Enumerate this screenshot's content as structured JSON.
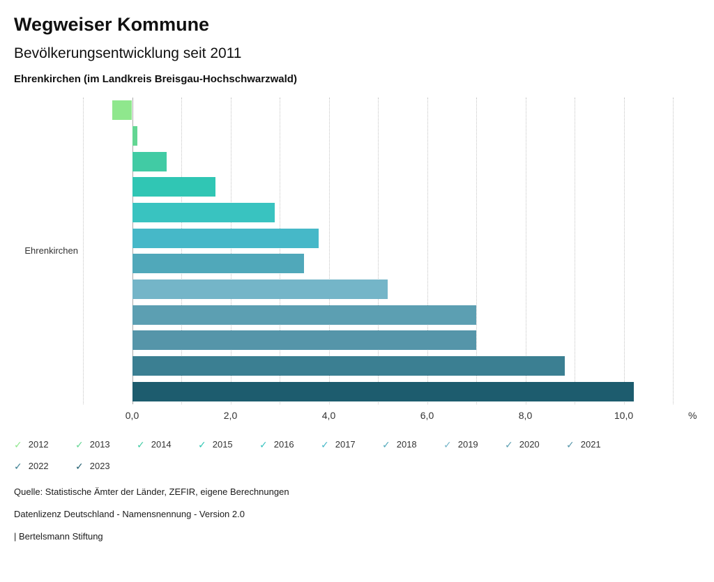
{
  "header": {
    "title": "Wegweiser Kommune",
    "subtitle": "Bevölkerungsentwicklung seit 2011",
    "region_line": "Ehrenkirchen (im Landkreis Breisgau-Hochschwarzwald)"
  },
  "chart_data": {
    "type": "bar",
    "orientation": "horizontal",
    "title": "Bevölkerungsentwicklung seit 2011",
    "category_label": "Ehrenkirchen",
    "unit_label": "%",
    "xlim": [
      -1,
      11
    ],
    "grid": "dotted vertical gridlines every 1.0",
    "legend_position": "bottom",
    "xticks": [
      {
        "value": 0,
        "label": "0,0"
      },
      {
        "value": 2,
        "label": "2,0"
      },
      {
        "value": 4,
        "label": "4,0"
      },
      {
        "value": 6,
        "label": "6,0"
      },
      {
        "value": 8,
        "label": "8,0"
      },
      {
        "value": 10,
        "label": "10,0"
      }
    ],
    "series": [
      {
        "year": "2012",
        "value": -0.4,
        "color": "#8fe78d"
      },
      {
        "year": "2013",
        "value": 0.1,
        "color": "#63d693"
      },
      {
        "year": "2014",
        "value": 0.7,
        "color": "#41cba4"
      },
      {
        "year": "2015",
        "value": 1.7,
        "color": "#30c6b4"
      },
      {
        "year": "2016",
        "value": 2.9,
        "color": "#39c3c0"
      },
      {
        "year": "2017",
        "value": 3.8,
        "color": "#46b8c8"
      },
      {
        "year": "2018",
        "value": 3.5,
        "color": "#50a8ba"
      },
      {
        "year": "2019",
        "value": 5.2,
        "color": "#74b5c8"
      },
      {
        "year": "2020",
        "value": 7.0,
        "color": "#5c9fb2"
      },
      {
        "year": "2021",
        "value": 7.0,
        "color": "#5595a9"
      },
      {
        "year": "2022",
        "value": 8.8,
        "color": "#3b7f92"
      },
      {
        "year": "2023",
        "value": 10.2,
        "color": "#1d5c6e"
      }
    ]
  },
  "legend": {
    "check_glyph": "✓",
    "items": [
      {
        "label": "2012",
        "color": "#8fe78d"
      },
      {
        "label": "2013",
        "color": "#63d693"
      },
      {
        "label": "2014",
        "color": "#41cba4"
      },
      {
        "label": "2015",
        "color": "#30c6b4"
      },
      {
        "label": "2016",
        "color": "#39c3c0"
      },
      {
        "label": "2017",
        "color": "#46b8c8"
      },
      {
        "label": "2018",
        "color": "#50a8ba"
      },
      {
        "label": "2019",
        "color": "#74b5c8"
      },
      {
        "label": "2020",
        "color": "#5c9fb2"
      },
      {
        "label": "2021",
        "color": "#5595a9"
      },
      {
        "label": "2022",
        "color": "#3b7f92"
      },
      {
        "label": "2023",
        "color": "#1d5c6e"
      }
    ]
  },
  "footer": {
    "lines": [
      "Quelle: Statistische Ämter der Länder, ZEFIR, eigene Berechnungen",
      "Datenlizenz Deutschland - Namensnennung - Version 2.0",
      "| Bertelsmann Stiftung"
    ]
  }
}
